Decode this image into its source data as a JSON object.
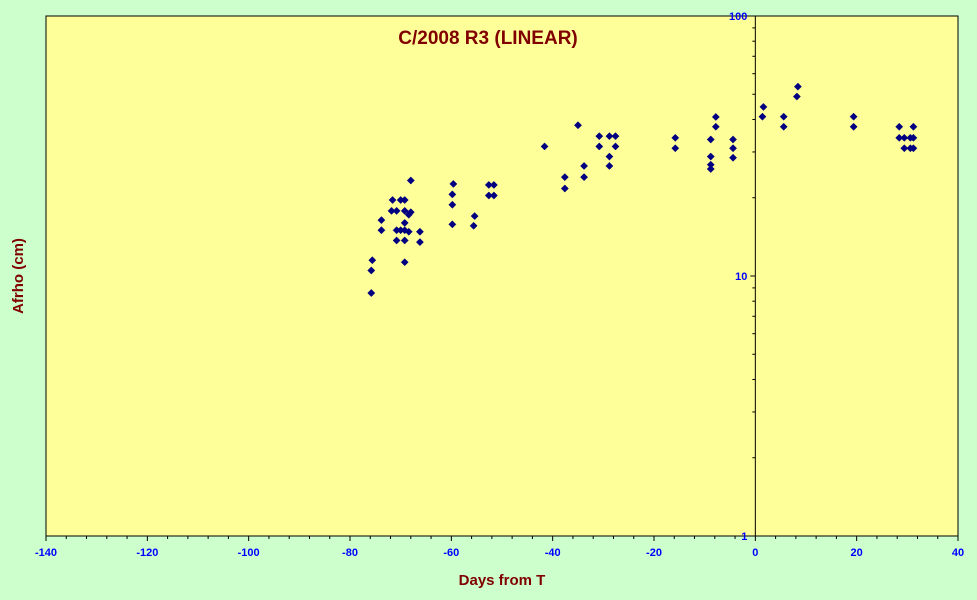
{
  "chart_data": {
    "type": "scatter",
    "title": "C/2008 R3 (LINEAR)",
    "xlabel": "Days from T",
    "ylabel": "Afrho (cm)",
    "xlim": [
      -140,
      40
    ],
    "ylim": [
      1,
      100
    ],
    "yscale": "log",
    "x_ticks": [
      -140,
      -120,
      -100,
      -80,
      -60,
      -40,
      -20,
      0,
      20,
      40
    ],
    "x_tick_labels": [
      "-140",
      "-120",
      "-100",
      "-80",
      "-60",
      "-40",
      "-20",
      "0",
      "20",
      "40"
    ],
    "y_ticks": [
      1,
      10,
      100
    ],
    "y_tick_labels": [
      "1",
      "10",
      "100"
    ],
    "grid": false,
    "legend": "none",
    "colors": {
      "background": "#ccffcc",
      "plot_area": "#ffff99",
      "marker": "#000080",
      "title": "#800000",
      "tick_labels": "#0000ff"
    },
    "series": [
      {
        "marker": "diamond",
        "points": [
          [
            -75.8,
            8.6
          ],
          [
            -75.8,
            10.5
          ],
          [
            -75.6,
            11.5
          ],
          [
            -73.8,
            15.0
          ],
          [
            -73.8,
            16.4
          ],
          [
            -71.8,
            17.8
          ],
          [
            -71.6,
            19.6
          ],
          [
            -70.8,
            13.7
          ],
          [
            -70.8,
            15.0
          ],
          [
            -70.8,
            17.8
          ],
          [
            -70.0,
            19.6
          ],
          [
            -70.0,
            15.0
          ],
          [
            -69.2,
            13.7
          ],
          [
            -69.2,
            16.0
          ],
          [
            -69.2,
            17.8
          ],
          [
            -69.2,
            19.6
          ],
          [
            -69.2,
            15.0
          ],
          [
            -69.2,
            11.3
          ],
          [
            -68.4,
            14.8
          ],
          [
            -68.4,
            17.2
          ],
          [
            -68.0,
            23.3
          ],
          [
            -68.0,
            17.6
          ],
          [
            -66.2,
            13.5
          ],
          [
            -66.2,
            14.8
          ],
          [
            -59.8,
            15.8
          ],
          [
            -59.8,
            18.8
          ],
          [
            -59.8,
            20.6
          ],
          [
            -59.6,
            22.6
          ],
          [
            -55.6,
            15.6
          ],
          [
            -55.4,
            17.0
          ],
          [
            -52.6,
            20.4
          ],
          [
            -52.6,
            22.4
          ],
          [
            -51.6,
            20.4
          ],
          [
            -51.6,
            22.4
          ],
          [
            -41.6,
            31.5
          ],
          [
            -37.6,
            21.7
          ],
          [
            -37.6,
            24.0
          ],
          [
            -35.0,
            38.0
          ],
          [
            -33.8,
            24.0
          ],
          [
            -33.8,
            26.5
          ],
          [
            -30.8,
            31.5
          ],
          [
            -30.8,
            34.5
          ],
          [
            -28.8,
            26.5
          ],
          [
            -28.8,
            28.8
          ],
          [
            -28.8,
            34.5
          ],
          [
            -27.6,
            31.5
          ],
          [
            -27.6,
            34.5
          ],
          [
            -15.8,
            31.0
          ],
          [
            -15.8,
            34.0
          ],
          [
            -8.8,
            25.8
          ],
          [
            -8.8,
            26.8
          ],
          [
            -8.8,
            28.8
          ],
          [
            -8.8,
            33.5
          ],
          [
            -7.8,
            37.5
          ],
          [
            -7.8,
            40.9
          ],
          [
            -4.4,
            28.5
          ],
          [
            -4.4,
            31.0
          ],
          [
            -4.4,
            33.5
          ],
          [
            1.4,
            41.0
          ],
          [
            1.6,
            44.7
          ],
          [
            5.6,
            37.5
          ],
          [
            5.6,
            41.0
          ],
          [
            8.2,
            49.0
          ],
          [
            8.4,
            53.5
          ],
          [
            19.4,
            37.5
          ],
          [
            19.4,
            41.0
          ],
          [
            28.4,
            34.0
          ],
          [
            28.4,
            37.5
          ],
          [
            29.4,
            31.0
          ],
          [
            29.4,
            34.0
          ],
          [
            30.6,
            31.0
          ],
          [
            30.6,
            34.0
          ],
          [
            31.2,
            31.0
          ],
          [
            31.2,
            34.0
          ],
          [
            31.2,
            37.5
          ]
        ]
      }
    ]
  }
}
